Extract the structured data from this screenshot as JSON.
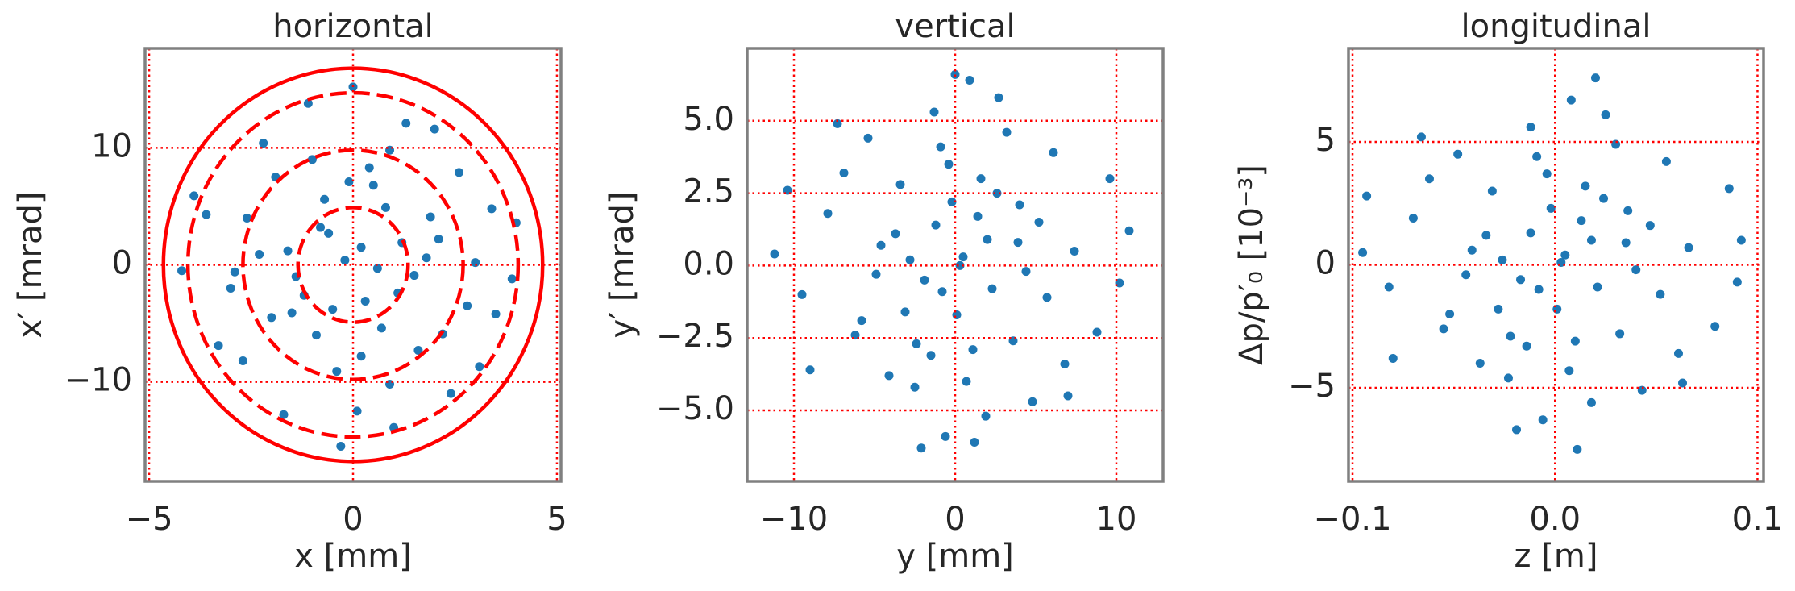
{
  "chart_data": [
    {
      "type": "scatter",
      "title": "horizontal",
      "xlabel": "x [mm]",
      "ylabel": "x′ [mrad]",
      "xlim": [
        -5.1,
        5.1
      ],
      "ylim": [
        -18.5,
        18.5
      ],
      "xticks": [
        {
          "value": -5,
          "label": "−5"
        },
        0,
        5
      ],
      "yticks": [
        {
          "value": -10,
          "label": "−10"
        },
        0,
        10
      ],
      "grid": true,
      "grid_color": "#ff0000",
      "color": "#1f77b4",
      "x": [
        0.2,
        -0.8,
        1.1,
        -1.5,
        0.5,
        2.1,
        -2.3,
        1.6,
        -0.4,
        0.9,
        -1.9,
        2.8,
        -3.0,
        3.4,
        -2.7,
        0.1,
        1.3,
        -3.6,
        3.9,
        -1.1,
        2.4,
        -4.2,
        0.6,
        -0.2,
        0.3,
        -0.6,
        1.8,
        -1.4,
        0.8,
        -0.9,
        2.6,
        -2.2,
        3.1,
        -3.3,
        0.0,
        -0.3,
        4.0,
        -3.9,
        1.0,
        -1.7,
        2.0,
        -2.6,
        0.4,
        -0.5,
        1.2,
        -1.2,
        0.7,
        -0.7,
        1.5,
        -1.6,
        3.0,
        -2.9,
        0.2,
        -0.1,
        2.2,
        -2.0,
        1.9,
        -1.0,
        0.9,
        3.5
      ],
      "y": [
        1.5,
        3.2,
        -2.4,
        -4.1,
        6.8,
        2.2,
        0.9,
        -7.3,
        -9.1,
        9.8,
        7.5,
        -3.5,
        -2.0,
        4.8,
        -8.2,
        -12.5,
        12.1,
        4.3,
        -1.2,
        13.8,
        -11.0,
        -0.5,
        -0.3,
        0.4,
        -3.1,
        2.7,
        0.6,
        -1.0,
        4.9,
        -6.0,
        7.9,
        10.4,
        -8.7,
        -6.9,
        15.2,
        -15.5,
        3.6,
        5.9,
        -13.9,
        -12.8,
        11.6,
        4.0,
        8.3,
        -3.8,
        1.9,
        -2.6,
        -5.4,
        5.6,
        -0.9,
        1.2,
        0.2,
        -0.6,
        -7.8,
        7.1,
        -5.9,
        -4.5,
        4.1,
        9.0,
        -10.2,
        -4.2
      ],
      "ellipse_color": "#ff0000",
      "ellipses": [
        {
          "rx": 1.35,
          "ry": 4.9,
          "dashed": true
        },
        {
          "rx": 2.7,
          "ry": 9.8,
          "dashed": true
        },
        {
          "rx": 4.05,
          "ry": 14.7,
          "dashed": true
        },
        {
          "rx": 4.65,
          "ry": 16.8,
          "dashed": false
        }
      ]
    },
    {
      "type": "scatter",
      "title": "vertical",
      "xlabel": "y [mm]",
      "ylabel": "y′ [mrad]",
      "xlim": [
        -12.9,
        12.9
      ],
      "ylim": [
        -7.45,
        7.5
      ],
      "xticks": [
        {
          "value": -10,
          "label": "−10"
        },
        0,
        10
      ],
      "yticks": [
        {
          "value": -5,
          "label": "−5.0"
        },
        {
          "value": -2.5,
          "label": "−2.5"
        },
        {
          "value": 0,
          "label": "0.0"
        },
        2.5,
        {
          "value": 5,
          "label": "5.0"
        }
      ],
      "grid": true,
      "grid_color": "#ff0000",
      "color": "#1f77b4",
      "x": [
        0.5,
        -1.2,
        2.3,
        -3.1,
        4.0,
        -4.6,
        1.1,
        -0.4,
        5.7,
        -6.2,
        3.2,
        -2.5,
        7.4,
        -7.9,
        0.9,
        -0.6,
        8.8,
        -9.5,
        10.8,
        -11.2,
        6.1,
        -5.4,
        4.8,
        -4.1,
        2.0,
        -1.9,
        0.1,
        -0.2,
        3.6,
        -3.4,
        1.6,
        -1.5,
        6.8,
        -6.9,
        2.7,
        -2.1,
        9.6,
        -9.0,
        0.3,
        -0.8,
        1.4,
        -2.8,
        3.9,
        -4.9,
        5.2,
        -5.8,
        7.0,
        -7.3,
        0.7,
        -0.9,
        1.9,
        -1.3,
        4.4,
        -3.7,
        2.6,
        -2.4,
        10.2,
        -10.4,
        0.0,
        1.2
      ],
      "y": [
        0.3,
        1.4,
        -0.8,
        -1.6,
        2.1,
        0.7,
        -2.9,
        3.5,
        -1.1,
        -2.4,
        4.6,
        -4.2,
        0.5,
        1.8,
        6.4,
        -5.9,
        -2.3,
        -1.0,
        1.2,
        0.4,
        3.9,
        4.4,
        -4.7,
        -3.8,
        0.9,
        -0.5,
        -1.7,
        2.2,
        -2.6,
        2.8,
        3.0,
        -3.1,
        -3.4,
        3.2,
        5.8,
        -6.3,
        3.0,
        -3.6,
        0.0,
        -0.9,
        1.7,
        0.2,
        0.8,
        -0.3,
        1.5,
        -1.9,
        -4.5,
        4.9,
        -4.0,
        4.1,
        -5.2,
        5.3,
        -0.2,
        1.1,
        2.5,
        -2.7,
        -0.6,
        2.6,
        6.6,
        -6.1
      ]
    },
    {
      "type": "scatter",
      "title": "longitudinal",
      "xlabel": "z [m]",
      "ylabel": "Δp/p′₀ [10⁻³]",
      "xlim": [
        -0.102,
        0.103
      ],
      "ylim": [
        -8.8,
        8.8
      ],
      "xticks": [
        {
          "value": -0.1,
          "label": "−0.1"
        },
        {
          "value": 0,
          "label": "0.0"
        },
        0.1
      ],
      "yticks": [
        {
          "value": -5,
          "label": "−5"
        },
        0,
        5
      ],
      "grid": true,
      "grid_color": "#ff0000",
      "color": "#1f77b4",
      "x": [
        0.005,
        -0.012,
        0.021,
        -0.028,
        0.036,
        -0.041,
        0.01,
        -0.004,
        0.052,
        -0.055,
        0.03,
        -0.023,
        0.066,
        -0.07,
        0.008,
        -0.006,
        0.079,
        -0.082,
        0.092,
        -0.095,
        0.055,
        -0.048,
        0.043,
        -0.037,
        0.018,
        -0.017,
        0.001,
        -0.002,
        0.032,
        -0.031,
        0.015,
        -0.014,
        0.061,
        -0.062,
        0.025,
        -0.019,
        0.086,
        -0.08,
        0.003,
        -0.008,
        0.013,
        -0.026,
        0.035,
        -0.044,
        0.047,
        -0.052,
        0.063,
        -0.066,
        0.007,
        -0.009,
        0.018,
        -0.012,
        0.04,
        -0.034,
        0.024,
        -0.022,
        0.09,
        -0.093,
        0.02,
        0.011
      ],
      "y": [
        0.4,
        1.3,
        -0.9,
        -1.8,
        2.2,
        0.6,
        -3.1,
        3.7,
        -1.2,
        -2.6,
        4.9,
        -4.6,
        0.7,
        1.9,
        6.7,
        -6.3,
        -2.5,
        -0.9,
        1.0,
        0.5,
        4.2,
        4.5,
        -5.1,
        -4.0,
        1.0,
        -0.6,
        -1.8,
        2.3,
        -2.8,
        3.0,
        3.2,
        -3.3,
        -3.6,
        3.5,
        6.1,
        -6.7,
        3.1,
        -3.8,
        0.1,
        -1.0,
        1.8,
        0.2,
        0.9,
        -0.4,
        1.6,
        -2.0,
        -4.8,
        5.2,
        -4.3,
        4.4,
        -5.6,
        5.6,
        -0.2,
        1.2,
        2.7,
        -2.9,
        -0.7,
        2.8,
        7.6,
        -7.5
      ]
    }
  ]
}
